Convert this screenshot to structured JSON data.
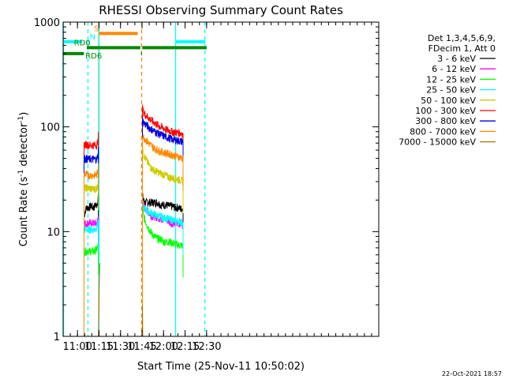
{
  "chart_data": {
    "type": "line",
    "title": "RHESSI Observing Summary Count Rates",
    "xlabel": "Start Time (25-Nov-11 10:50:02)",
    "ylabel": "Count Rate (s",
    "ylabel_sup": "-1",
    "ylabel_rest": " detector",
    "ylabel_sup2": "-1",
    "ylabel_close": ")",
    "yscale": "log",
    "ylim": [
      1,
      1000
    ],
    "xlim_min": [
      650,
      870
    ],
    "x_unit": "minutes after 00:00 UT, 25-Nov-11",
    "x_ticks": [
      {
        "v": 660,
        "label": "11:00"
      },
      {
        "v": 675,
        "label": "11:15"
      },
      {
        "v": 690,
        "label": "11:30"
      },
      {
        "v": 705,
        "label": "11:45"
      },
      {
        "v": 720,
        "label": "12:00"
      },
      {
        "v": 735,
        "label": "12:15"
      },
      {
        "v": 750,
        "label": "12:30"
      }
    ],
    "y_ticks": [
      {
        "v": 1,
        "label": "1"
      },
      {
        "v": 10,
        "label": "10"
      },
      {
        "v": 100,
        "label": "100"
      },
      {
        "v": 1000,
        "label": "1000"
      }
    ],
    "legend_header": [
      "Det 1,3,4,5,6,9,",
      "FDecim 1, Att 0"
    ],
    "legend_position": "right",
    "series": [
      {
        "name": "3 - 6 keV",
        "color": "#000000",
        "segments": [
          {
            "x": [
              664.6,
              665.5,
              666.5,
              667.5,
              668.5,
              669.5,
              670.5,
              671.5,
              672.5,
              673.5,
              674.2,
              674.6
            ],
            "y": [
              14,
              16,
              17,
              17,
              17,
              18,
              17,
              17,
              18,
              18,
              20,
              23
            ]
          },
          {
            "x": [
              705.3,
              706,
              707,
              708,
              710,
              712,
              714,
              716,
              718,
              720,
              722,
              724,
              726,
              728,
              730,
              732,
              733.6
            ],
            "y": [
              22,
              20,
              19,
              19,
              19,
              19,
              19,
              19,
              18,
              18,
              18,
              17.5,
              17.5,
              17,
              17,
              16.5,
              16.5
            ]
          }
        ]
      },
      {
        "name": "6 - 12 keV",
        "color": "#ff00ff",
        "segments": [
          {
            "x": [
              664.6,
              666,
              668,
              670,
              672,
              673.5,
              674.2,
              674.6
            ],
            "y": [
              12,
              12,
              12,
              12,
              12,
              12,
              13,
              14
            ]
          },
          {
            "x": [
              705.3,
              706,
              708,
              710,
              712,
              714,
              716,
              718,
              720,
              722,
              724,
              726,
              728,
              730,
              732,
              733.6
            ],
            "y": [
              20,
              18,
              16,
              15,
              14,
              14,
              13.5,
              13.5,
              13,
              13,
              12.5,
              12,
              12,
              12,
              12,
              11.5
            ]
          }
        ]
      },
      {
        "name": "12 - 25 keV",
        "color": "#00ff00",
        "segments": [
          {
            "x": [
              664.6,
              666,
              668,
              670,
              672,
              673.5,
              674.2,
              674.6
            ],
            "y": [
              6.5,
              6.5,
              6.5,
              6.5,
              6.5,
              6.8,
              7.2,
              7.8
            ]
          },
          {
            "x": [
              705.3,
              706,
              708,
              710,
              712,
              714,
              716,
              718,
              720,
              722,
              724,
              726,
              728,
              730,
              732,
              733.6
            ],
            "y": [
              17,
              14,
              12,
              10.5,
              9.5,
              9,
              8.5,
              8.5,
              8,
              8,
              8,
              7.8,
              7.6,
              7.5,
              7.4,
              7.3
            ]
          }
        ]
      },
      {
        "name": "25 - 50 keV",
        "color": "#00ffff",
        "segments": [
          {
            "x": [
              664.6,
              666,
              668,
              670,
              672,
              673.5,
              674.2,
              674.6
            ],
            "y": [
              10.5,
              10.5,
              10.5,
              10.5,
              10.5,
              11,
              12,
              13
            ]
          },
          {
            "x": [
              705.3,
              706,
              708,
              710,
              712,
              714,
              716,
              718,
              720,
              722,
              724,
              726,
              728,
              730,
              732,
              733.6
            ],
            "y": [
              18,
              17,
              16,
              15.5,
              15,
              14.5,
              14,
              14,
              13.5,
              13.5,
              13,
              13,
              12.5,
              12.5,
              12.5,
              12
            ]
          }
        ]
      },
      {
        "name": "50 - 100 keV",
        "color": "#cccc00",
        "segments": [
          {
            "x": [
              664.6,
              666,
              668,
              670,
              672,
              673.5,
              674.2,
              674.6
            ],
            "y": [
              26,
              26,
              26,
              25.5,
              25.5,
              26,
              28,
              32
            ]
          },
          {
            "x": [
              705.3,
              706,
              708,
              710,
              712,
              714,
              716,
              718,
              720,
              722,
              724,
              726,
              728,
              730,
              732,
              733.6
            ],
            "y": [
              60,
              55,
              48,
              43,
              40,
              38,
              37,
              36,
              35,
              34,
              33,
              32.5,
              32,
              31.5,
              31,
              30
            ]
          }
        ]
      },
      {
        "name": "100 - 300 keV",
        "color": "#ff0000",
        "segments": [
          {
            "x": [
              664.6,
              666,
              668,
              670,
              672,
              673.5,
              674.2,
              674.6
            ],
            "y": [
              68,
              68,
              67,
              67,
              67,
              67,
              72,
              90
            ]
          },
          {
            "x": [
              705.3,
              706,
              708,
              710,
              712,
              714,
              716,
              718,
              720,
              722,
              724,
              726,
              728,
              730,
              732,
              733.6
            ],
            "y": [
              150,
              138,
              128,
              120,
              114,
              108,
              104,
              100,
              97,
              94,
              92,
              90,
              89,
              88,
              87,
              86
            ]
          }
        ]
      },
      {
        "name": "300 - 800 keV",
        "color": "#0000dd",
        "segments": [
          {
            "x": [
              664.6,
              666,
              668,
              670,
              672,
              673.5,
              674.2,
              674.6
            ],
            "y": [
              50,
              50,
              49,
              49,
              49,
              49,
              53,
              65
            ]
          },
          {
            "x": [
              705.3,
              706,
              708,
              710,
              712,
              714,
              716,
              718,
              720,
              722,
              724,
              726,
              728,
              730,
              732,
              733.6
            ],
            "y": [
              118,
              110,
              104,
              98,
              94,
              90,
              87,
              84,
              82,
              80,
              78,
              76,
              75,
              74,
              73,
              72
            ]
          }
        ]
      },
      {
        "name": "800 - 7000 keV",
        "color": "#ff8800",
        "segments": [
          {
            "x": [
              664.6,
              666,
              668,
              670,
              672,
              673.5,
              674.2,
              674.6
            ],
            "y": [
              35,
              35,
              34.5,
              34.5,
              34.5,
              35,
              37,
              45
            ]
          },
          {
            "x": [
              705.3,
              706,
              708,
              710,
              712,
              714,
              716,
              718,
              720,
              722,
              724,
              726,
              728,
              730,
              732,
              733.6
            ],
            "y": [
              85,
              80,
              74,
              69,
              65,
              62,
              60,
              58,
              57,
              56,
              55,
              54,
              53,
              52,
              51,
              50
            ]
          }
        ]
      },
      {
        "name": "7000 - 15000 keV",
        "color": "#aa7700",
        "segments": [
          {
            "x": [
              674.6,
              674.8,
              675,
              675.1,
              675.2,
              675.4,
              675.6
            ],
            "y": [
              1,
              1.4,
              2,
              2.6,
              3,
              3.8,
              5
            ]
          },
          {
            "x": [
              705.1,
              705.2,
              705.3,
              705.4,
              705.5
            ],
            "y": [
              1,
              1.5,
              2,
              1.5,
              1
            ]
          }
        ]
      }
    ],
    "flags": [
      {
        "label": "",
        "color": "#00ffff",
        "value": 650,
        "segments": [
          [
            650,
            663.2
          ]
        ]
      },
      {
        "label": "N",
        "color": "#00ffff",
        "value": 650,
        "segments": [
          [
            666.8,
            667.8
          ]
        ],
        "label_x": 668.5
      },
      {
        "label": "",
        "color": "#00ffff",
        "value": 650,
        "segments": [
          [
            728.5,
            749
          ]
        ]
      },
      {
        "label": "S",
        "color": "#ff8800",
        "value": 780,
        "segments": [
          [
            675,
            702
          ]
        ],
        "label_x": 671.5
      },
      {
        "label": "RD0",
        "color": "#008800",
        "value": 570,
        "segments": [
          [
            666.5,
            703.8
          ],
          [
            705.2,
            750
          ]
        ],
        "label_x": 657.5
      },
      {
        "label": "RD6",
        "color": "#008800",
        "value": 500,
        "segments": [
          [
            650,
            664.5
          ],
          [
            704.3,
            705.0
          ]
        ],
        "label_x": 665.5
      }
    ],
    "vlines": [
      {
        "x": 650.3,
        "color": "#00ffff",
        "style": "solid"
      },
      {
        "x": 667.3,
        "color": "#00ffff",
        "style": "dashed"
      },
      {
        "x": 674.8,
        "color": "#ff8800",
        "style": "solid"
      },
      {
        "x": 675.0,
        "color": "#00ffff",
        "style": "solid"
      },
      {
        "x": 704.7,
        "color": "#ff8800",
        "style": "dashed"
      },
      {
        "x": 728.4,
        "color": "#00ffff",
        "style": "solid"
      },
      {
        "x": 748.8,
        "color": "#00ffff",
        "style": "dashed"
      }
    ],
    "grid": false
  },
  "footer_date": "22-Oct-2021 18:57"
}
